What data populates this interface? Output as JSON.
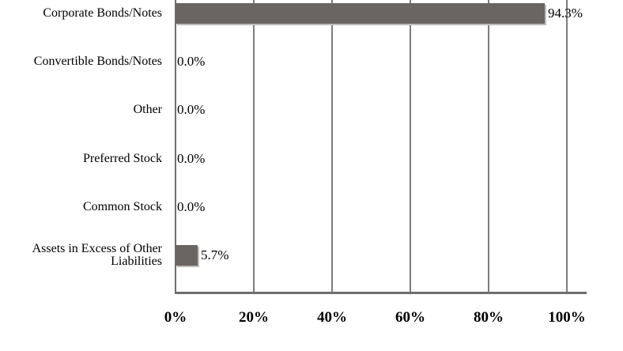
{
  "chart_data": {
    "type": "bar",
    "orientation": "horizontal",
    "title": "",
    "categories": [
      "Corporate Bonds/Notes",
      "Convertible Bonds/Notes",
      "Other",
      "Preferred Stock",
      "Common Stock",
      "Assets in Excess of Other Liabilities"
    ],
    "values": [
      94.3,
      0.0,
      0.0,
      0.0,
      0.0,
      5.7
    ],
    "value_labels": [
      "94.3%",
      "0.0%",
      "0.0%",
      "0.0%",
      "0.0%",
      "5.7%"
    ],
    "xlabel": "",
    "ylabel": "",
    "xlim": [
      0,
      100
    ],
    "x_tick_values": [
      0,
      20,
      40,
      60,
      80,
      100
    ],
    "x_tick_labels": [
      "0%",
      "20%",
      "40%",
      "60%",
      "80%",
      "100%"
    ],
    "grid": "vertical gridlines at each x tick",
    "legend": "none",
    "colors": {
      "bar": "#6a6561",
      "bar_shadow": "#bdbdbd",
      "gridline": "#7d7d7d",
      "axis": "#6e6e6e",
      "text": "#000000",
      "background": "#ffffff"
    }
  }
}
